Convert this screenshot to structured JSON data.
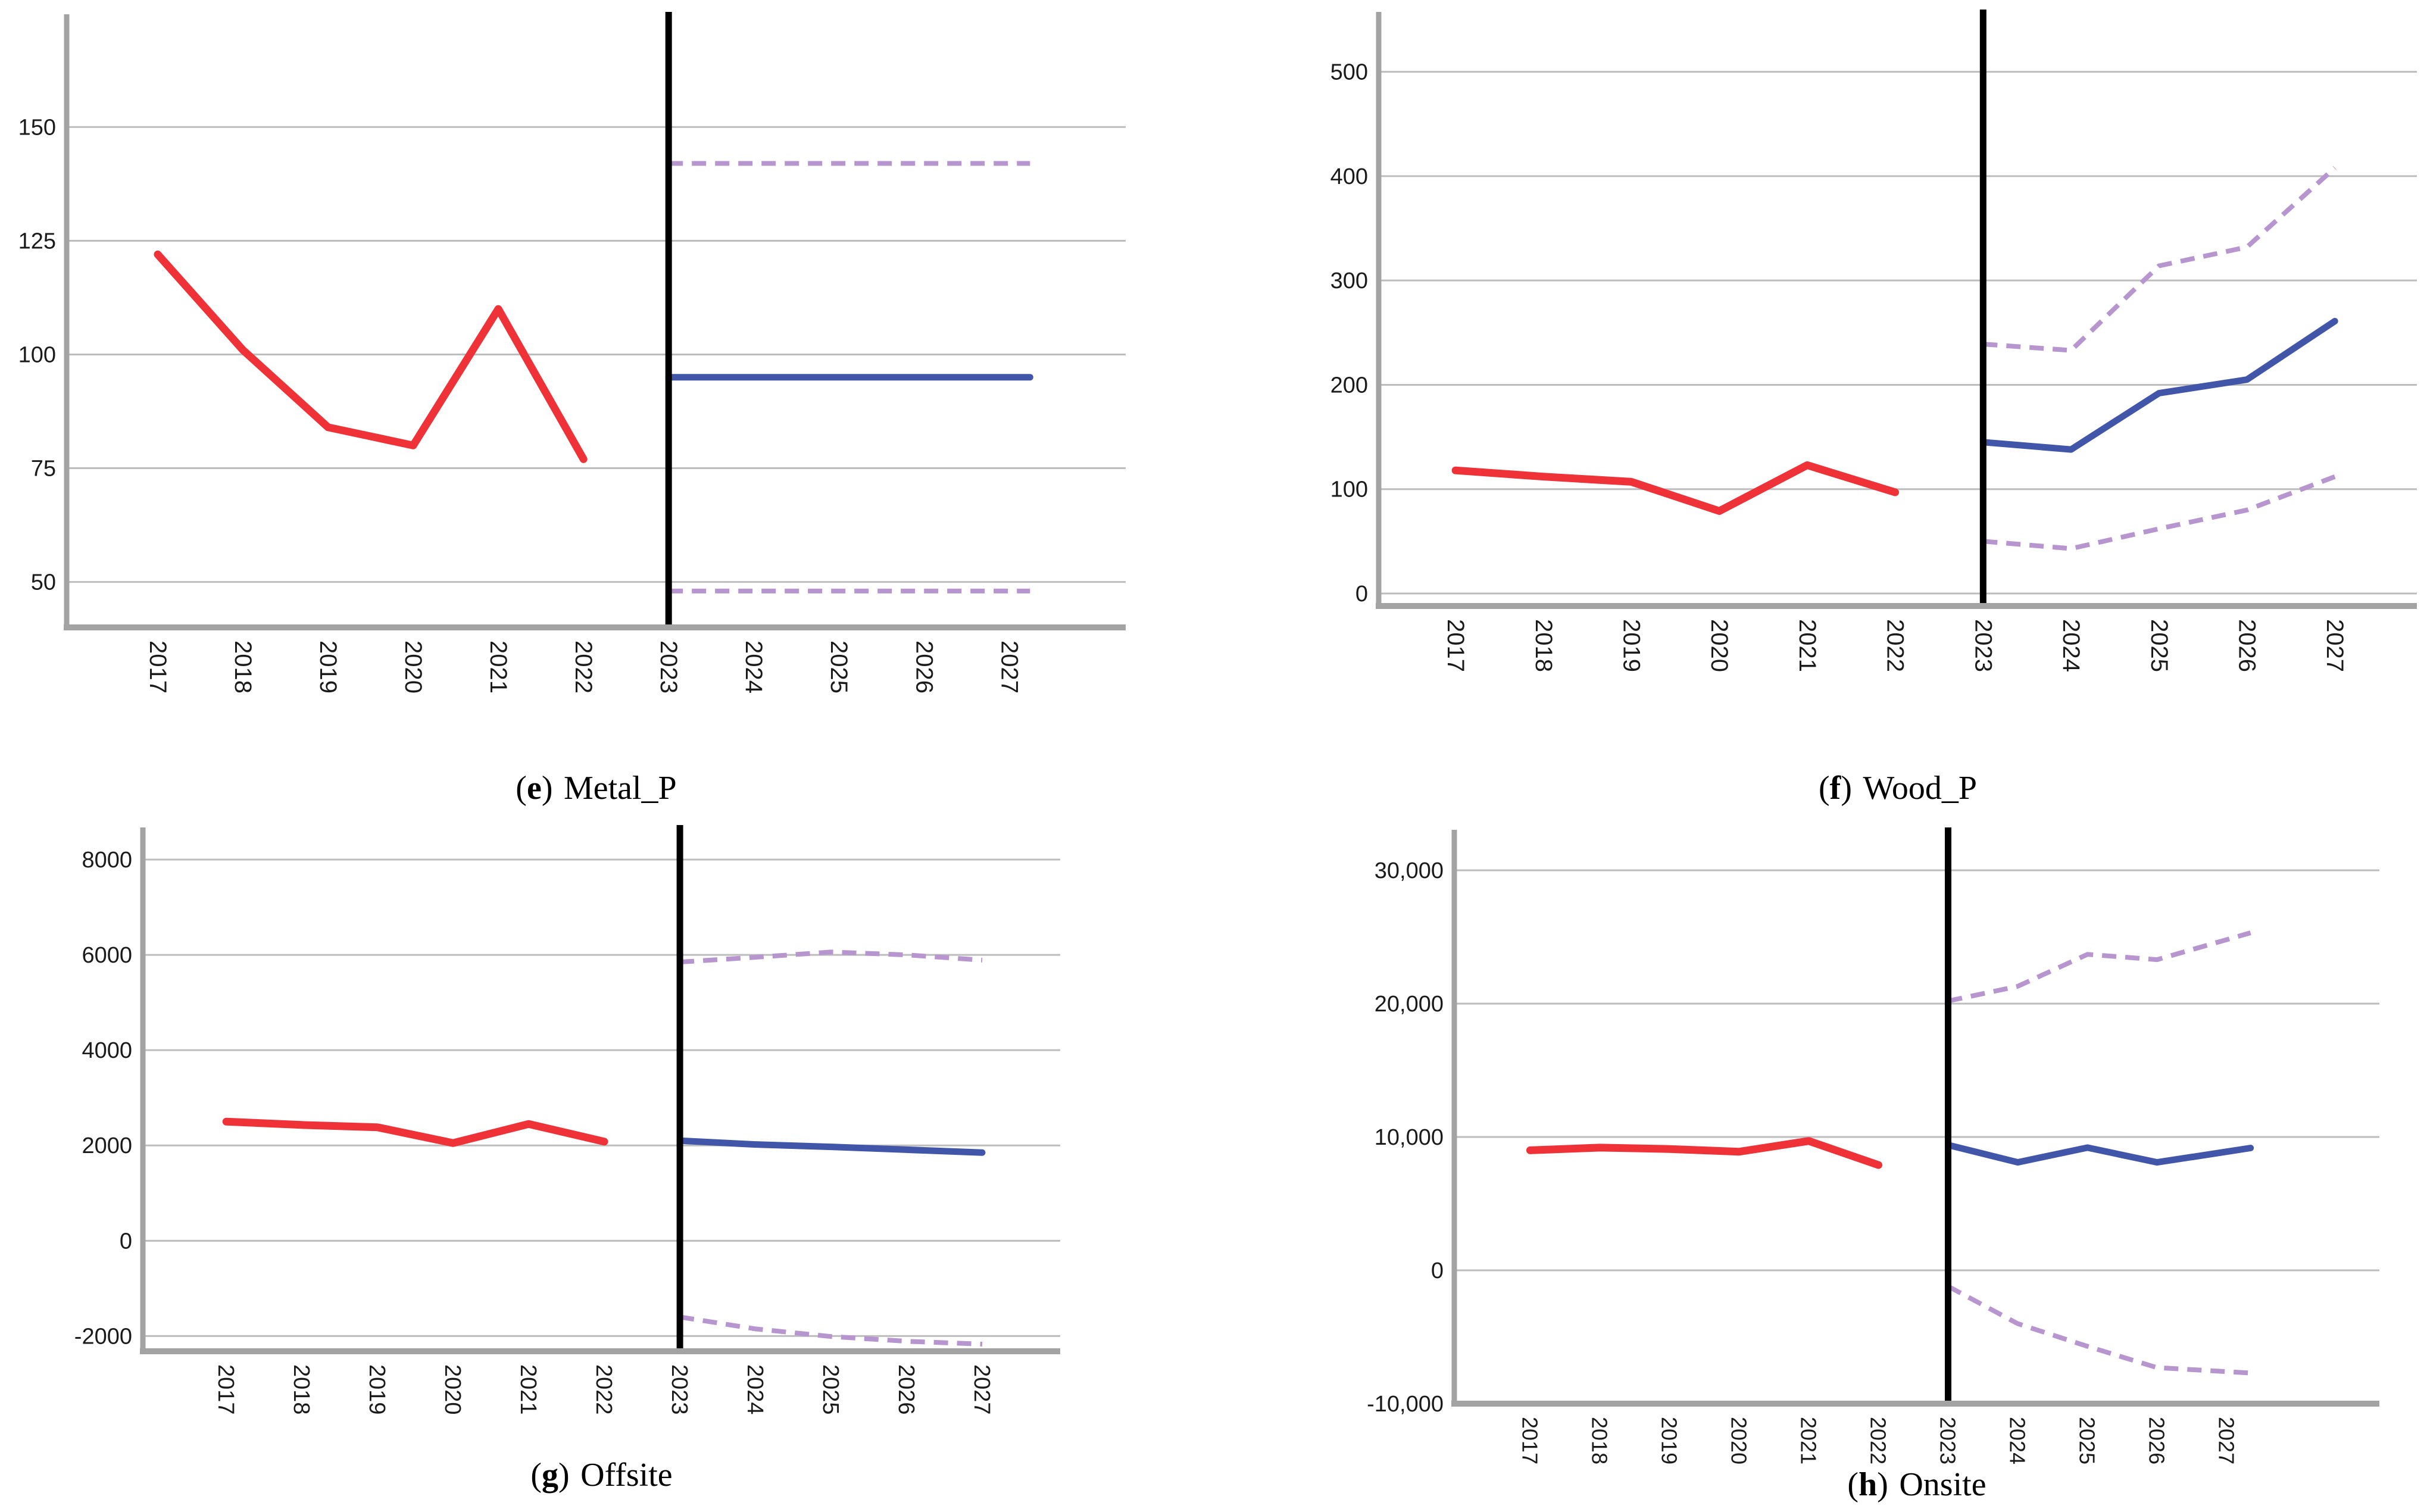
{
  "colors": {
    "observed": "#EE3237",
    "forecast": "#4156A8",
    "interval": "#B795CE",
    "gridline": "#BDBDBD",
    "axis": "#A3A3A3",
    "divider": "#000000",
    "tick_text": "#1A1A1A"
  },
  "chart_data": [
    {
      "id": "metal_p",
      "type": "line",
      "caption": {
        "open": "(",
        "letter": "e",
        "close": ")",
        "name": "Metal_P"
      },
      "x_labels": [
        "2017",
        "2018",
        "2019",
        "2020",
        "2021",
        "2022",
        "2023",
        "2024",
        "2025",
        "2026",
        "2027"
      ],
      "observed_years": [
        "2017",
        "2018",
        "2019",
        "2020",
        "2021",
        "2022"
      ],
      "forecast_years": [
        "2023",
        "2024",
        "2025",
        "2026",
        "2027"
      ],
      "divider_year": "2023",
      "ylim": [
        40,
        174
      ],
      "y_ticks": [
        {
          "value": 50,
          "label": "50"
        },
        {
          "value": 75,
          "label": "75"
        },
        {
          "value": 100,
          "label": "100"
        },
        {
          "value": 125,
          "label": "125"
        },
        {
          "value": 150,
          "label": "150"
        }
      ],
      "series": [
        {
          "name": "observed",
          "role": "observed",
          "values": [
            122,
            101,
            84,
            80,
            110,
            77
          ]
        },
        {
          "name": "forecast",
          "role": "forecast",
          "values": [
            95,
            95,
            95,
            95,
            95
          ]
        },
        {
          "name": "upper_confidence",
          "role": "interval",
          "values": [
            142,
            142,
            142,
            142,
            142
          ]
        },
        {
          "name": "lower_confidence",
          "role": "interval",
          "values": [
            48,
            48,
            48,
            48,
            48
          ]
        }
      ]
    },
    {
      "id": "wood_p",
      "type": "line",
      "caption": {
        "open": "(",
        "letter": "f",
        "close": ")",
        "name": "Wood_P"
      },
      "x_labels": [
        "2017",
        "2018",
        "2019",
        "2020",
        "2021",
        "2022",
        "2023",
        "2024",
        "2025",
        "2026",
        "2027"
      ],
      "observed_years": [
        "2017",
        "2018",
        "2019",
        "2020",
        "2021",
        "2022"
      ],
      "forecast_years": [
        "2023",
        "2024",
        "2025",
        "2026",
        "2027"
      ],
      "divider_year": "2023",
      "ylim": [
        -12,
        554
      ],
      "y_ticks": [
        {
          "value": 0,
          "label": "0"
        },
        {
          "value": 100,
          "label": "100"
        },
        {
          "value": 200,
          "label": "200"
        },
        {
          "value": 300,
          "label": "300"
        },
        {
          "value": 400,
          "label": "400"
        },
        {
          "value": 500,
          "label": "500"
        }
      ],
      "series": [
        {
          "name": "observed",
          "role": "observed",
          "values": [
            118,
            112,
            107,
            79,
            123,
            97
          ]
        },
        {
          "name": "forecast",
          "role": "forecast",
          "values": [
            145,
            138,
            192,
            205,
            261
          ]
        },
        {
          "name": "upper_confidence",
          "role": "interval",
          "values": [
            239,
            233,
            314,
            332,
            408
          ]
        },
        {
          "name": "lower_confidence",
          "role": "interval",
          "values": [
            50,
            43,
            62,
            80,
            112
          ]
        }
      ]
    },
    {
      "id": "offsite",
      "type": "line",
      "caption": {
        "open": "(",
        "letter": "g",
        "close": ")",
        "name": "Offsite"
      },
      "x_labels": [
        "2017",
        "2018",
        "2019",
        "2020",
        "2021",
        "2022",
        "2023",
        "2024",
        "2025",
        "2026",
        "2027"
      ],
      "observed_years": [
        "2017",
        "2018",
        "2019",
        "2020",
        "2021",
        "2022"
      ],
      "forecast_years": [
        "2023",
        "2024",
        "2025",
        "2026",
        "2027"
      ],
      "divider_year": "2023",
      "ylim": [
        -2320,
        8600
      ],
      "y_ticks": [
        {
          "value": -2000,
          "label": "-2000"
        },
        {
          "value": 0,
          "label": "0"
        },
        {
          "value": 2000,
          "label": "2000"
        },
        {
          "value": 4000,
          "label": "4000"
        },
        {
          "value": 6000,
          "label": "6000"
        },
        {
          "value": 8000,
          "label": "8000"
        }
      ],
      "series": [
        {
          "name": "observed",
          "role": "observed",
          "values": [
            2500,
            2430,
            2380,
            2050,
            2450,
            2080
          ]
        },
        {
          "name": "forecast",
          "role": "forecast",
          "values": [
            2100,
            2020,
            1970,
            1910,
            1850
          ]
        },
        {
          "name": "upper_confidence",
          "role": "interval",
          "values": [
            5850,
            5950,
            6060,
            6000,
            5890
          ]
        },
        {
          "name": "lower_confidence",
          "role": "interval",
          "values": [
            -1600,
            -1850,
            -2010,
            -2110,
            -2170
          ]
        }
      ]
    },
    {
      "id": "onsite",
      "type": "line",
      "caption": {
        "open": "(",
        "letter": "h",
        "close": ")",
        "name": "Onsite"
      },
      "x_labels": [
        "2017",
        "2018",
        "2019",
        "2020",
        "2021",
        "2022",
        "2023",
        "2024",
        "2025",
        "2026",
        "2027"
      ],
      "observed_years": [
        "2017",
        "2018",
        "2019",
        "2020",
        "2021",
        "2022"
      ],
      "forecast_years": [
        "2023",
        "2024",
        "2025",
        "2026",
        "2027"
      ],
      "divider_year": "2023",
      "ylim": [
        -10000,
        32770
      ],
      "y_ticks": [
        {
          "value": -10000,
          "label": "-10,000"
        },
        {
          "value": 0,
          "label": "0"
        },
        {
          "value": 10000,
          "label": "10,000"
        },
        {
          "value": 20000,
          "label": "20,000"
        },
        {
          "value": 30000,
          "label": "30,000"
        }
      ],
      "series": [
        {
          "name": "observed",
          "role": "observed",
          "values": [
            9000,
            9200,
            9100,
            8900,
            9700,
            7900
          ]
        },
        {
          "name": "forecast",
          "role": "forecast",
          "values": [
            9400,
            8100,
            9200,
            8100,
            8900
          ]
        },
        {
          "name": "upper_confidence",
          "role": "interval",
          "values": [
            20200,
            21300,
            23700,
            23300,
            24800
          ]
        },
        {
          "name": "lower_confidence",
          "role": "interval",
          "values": [
            -1200,
            -4000,
            -5700,
            -7300,
            -7600
          ]
        }
      ]
    }
  ]
}
